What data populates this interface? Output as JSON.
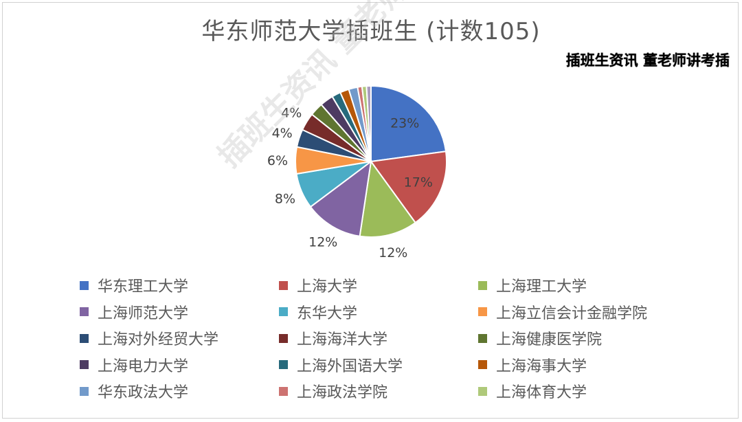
{
  "header": {
    "title": "华东师范大学插班生 (计数105)",
    "tag": "插班生资讯 董老师讲考插",
    "watermark": "插班生资讯 董老师讲考插"
  },
  "chart_data": {
    "type": "pie",
    "title": "华东师范大学插班生 (计数105)",
    "total": 105,
    "legend_position": "bottom",
    "start_angle_deg": 0,
    "direction": "clockwise",
    "slices": [
      {
        "name": "华东理工大学",
        "value": 24,
        "color": "#4472C4",
        "label": "23%"
      },
      {
        "name": "上海大学",
        "value": 18,
        "color": "#C0504D",
        "label": "17%"
      },
      {
        "name": "上海理工大学",
        "value": 13,
        "color": "#9BBB59",
        "label": "12%"
      },
      {
        "name": "上海师范大学",
        "value": 13,
        "color": "#8064A2",
        "label": "12%"
      },
      {
        "name": "东华大学",
        "value": 8,
        "color": "#4BACC6",
        "label": "8%"
      },
      {
        "name": "上海立信会计金融学院",
        "value": 6,
        "color": "#F79646",
        "label": "6%"
      },
      {
        "name": "上海对外经贸大学",
        "value": 4,
        "color": "#2C4D75",
        "label": "4%"
      },
      {
        "name": "上海海洋大学",
        "value": 4,
        "color": "#772C2A",
        "label": "4%"
      },
      {
        "name": "上海健康医学院",
        "value": 3,
        "color": "#5F7530",
        "label": ""
      },
      {
        "name": "上海电力大学",
        "value": 3,
        "color": "#4D3B62",
        "label": ""
      },
      {
        "name": "上海外国语大学",
        "value": 2,
        "color": "#276A7C",
        "label": ""
      },
      {
        "name": "上海海事大学",
        "value": 2,
        "color": "#B65708",
        "label": ""
      },
      {
        "name": "华东政法大学",
        "value": 2,
        "color": "#729ACA",
        "label": ""
      },
      {
        "name": "上海政法学院",
        "value": 1,
        "color": "#CD7371",
        "label": ""
      },
      {
        "name": "上海体育大学",
        "value": 1,
        "color": "#AFC97A",
        "label": ""
      },
      {
        "name": "",
        "value": 1,
        "color": "#A99BBD",
        "label": ""
      }
    ]
  }
}
